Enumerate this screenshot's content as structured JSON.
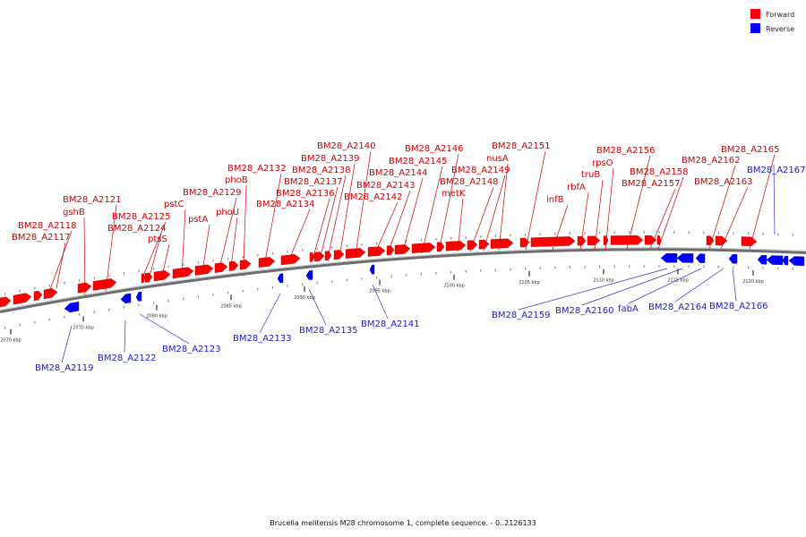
{
  "caption": "Brucella melitensis M28 chromosome 1, complete sequence. - 0..2126133",
  "legend": {
    "forward_label": "Forward",
    "reverse_label": "Reverse",
    "forward_color": "#ff0000",
    "reverse_color": "#0000ff"
  },
  "ticks": [
    "2070 kbp",
    "2075 kbp",
    "2080 kbp",
    "2085 kbp",
    "2090 kbp",
    "2095 kbp",
    "2100 kbp",
    "2105 kbp",
    "2110 kbp",
    "2115 kbp",
    "2120 kbp"
  ],
  "genes": [
    {
      "name": "BM28_A2117",
      "strand": "forward"
    },
    {
      "name": "BM28_A2118",
      "strand": "forward"
    },
    {
      "name": "BM28_A2119",
      "strand": "reverse"
    },
    {
      "name": "gshB",
      "strand": "forward"
    },
    {
      "name": "BM28_A2121",
      "strand": "forward"
    },
    {
      "name": "BM28_A2122",
      "strand": "reverse"
    },
    {
      "name": "BM28_A2123",
      "strand": "reverse"
    },
    {
      "name": "BM28_A2124",
      "strand": "forward"
    },
    {
      "name": "BM28_A2125",
      "strand": "forward"
    },
    {
      "name": "ptsS",
      "strand": "forward"
    },
    {
      "name": "pstC",
      "strand": "forward"
    },
    {
      "name": "pstA",
      "strand": "forward"
    },
    {
      "name": "BM28_A2129",
      "strand": "forward"
    },
    {
      "name": "phoU",
      "strand": "forward"
    },
    {
      "name": "phoB",
      "strand": "forward"
    },
    {
      "name": "BM28_A2132",
      "strand": "forward"
    },
    {
      "name": "BM28_A2133",
      "strand": "reverse"
    },
    {
      "name": "BM28_A2134",
      "strand": "forward"
    },
    {
      "name": "BM28_A2135",
      "strand": "reverse"
    },
    {
      "name": "BM28_A2136",
      "strand": "forward"
    },
    {
      "name": "BM28_A2137",
      "strand": "forward"
    },
    {
      "name": "BM28_A2138",
      "strand": "forward"
    },
    {
      "name": "BM28_A2139",
      "strand": "forward"
    },
    {
      "name": "BM28_A2140",
      "strand": "forward"
    },
    {
      "name": "BM28_A2141",
      "strand": "reverse"
    },
    {
      "name": "BM28_A2142",
      "strand": "forward"
    },
    {
      "name": "BM28_A2143",
      "strand": "forward"
    },
    {
      "name": "BM28_A2144",
      "strand": "forward"
    },
    {
      "name": "BM28_A2145",
      "strand": "forward"
    },
    {
      "name": "BM28_A2146",
      "strand": "forward"
    },
    {
      "name": "metK",
      "strand": "forward"
    },
    {
      "name": "BM28_A2148",
      "strand": "forward"
    },
    {
      "name": "BM28_A2149",
      "strand": "forward"
    },
    {
      "name": "nusA",
      "strand": "forward"
    },
    {
      "name": "BM28_A2151",
      "strand": "forward"
    },
    {
      "name": "infB",
      "strand": "forward"
    },
    {
      "name": "rbfA",
      "strand": "forward"
    },
    {
      "name": "truB",
      "strand": "forward"
    },
    {
      "name": "rpsO",
      "strand": "forward"
    },
    {
      "name": "BM28_A2156",
      "strand": "forward"
    },
    {
      "name": "BM28_A2157",
      "strand": "forward"
    },
    {
      "name": "BM28_A2158",
      "strand": "forward"
    },
    {
      "name": "BM28_A2159",
      "strand": "reverse"
    },
    {
      "name": "BM28_A2160",
      "strand": "reverse"
    },
    {
      "name": "fabA",
      "strand": "reverse"
    },
    {
      "name": "BM28_A2162",
      "strand": "forward"
    },
    {
      "name": "BM28_A2163",
      "strand": "forward"
    },
    {
      "name": "BM28_A2164",
      "strand": "reverse"
    },
    {
      "name": "BM28_A2165",
      "strand": "forward"
    },
    {
      "name": "BM28_A2166",
      "strand": "reverse"
    },
    {
      "name": "BM28_A2167",
      "strand": "reverse"
    }
  ]
}
